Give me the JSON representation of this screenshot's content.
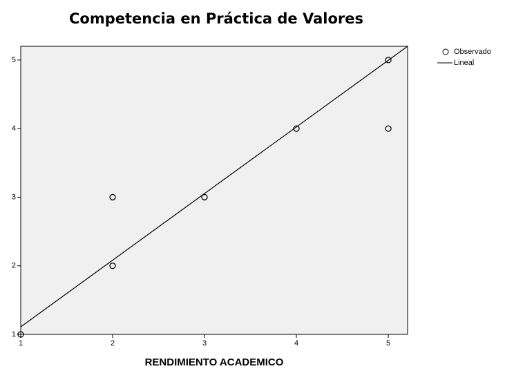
{
  "chart_data": {
    "type": "scatter",
    "title": "Competencia en Práctica de Valores",
    "x_label": "RENDIMIENTO ACADEMICO",
    "series": [
      {
        "name": "Observado",
        "type": "scatter",
        "color": "#000000",
        "x": [
          1,
          2,
          2,
          3,
          4,
          5,
          5
        ],
        "values": [
          1,
          2,
          3,
          3,
          4,
          5,
          4
        ]
      },
      {
        "name": "Lineal",
        "type": "line",
        "color": "#000000",
        "x": [
          1,
          5.21
        ],
        "values": [
          1.11,
          5.2
        ]
      }
    ],
    "xlim": [
      1,
      5.21
    ],
    "ylim": [
      1,
      5.2
    ],
    "xticks": [
      1,
      2,
      3,
      4,
      5
    ],
    "yticks": [
      1,
      2,
      3,
      4,
      5
    ],
    "plot_background": "#f0f0f0",
    "grid": false,
    "legend": "right"
  }
}
